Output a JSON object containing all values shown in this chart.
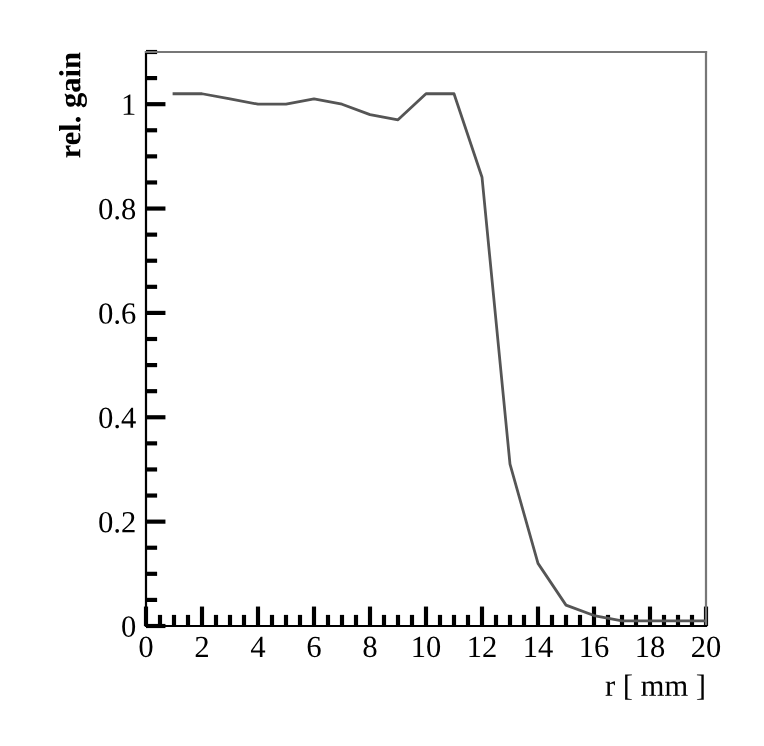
{
  "chart_data": {
    "type": "line",
    "xlabel": "r [ mm ]",
    "ylabel": "rel. gain",
    "x": [
      1,
      2,
      3,
      4,
      5,
      6,
      7,
      8,
      9,
      10,
      11,
      12,
      13,
      14,
      15,
      16,
      17,
      18,
      19,
      20
    ],
    "series": [
      {
        "color": "#555555",
        "values": [
          1.02,
          1.02,
          1.01,
          1.0,
          1.0,
          1.01,
          1.0,
          0.98,
          0.97,
          1.02,
          1.02,
          0.86,
          0.31,
          0.12,
          0.04,
          0.02,
          0.01,
          0.01,
          0.01,
          0.01
        ]
      }
    ],
    "xlim": [
      0,
      20
    ],
    "ylim": [
      0,
      1.1
    ],
    "xticks": [
      0,
      2,
      4,
      6,
      8,
      10,
      12,
      14,
      16,
      18,
      20
    ],
    "yticks": [
      0,
      0.2,
      0.4,
      0.6,
      0.8,
      1
    ],
    "grid": false,
    "legend": false,
    "marker": "none",
    "line_style": "solid"
  }
}
